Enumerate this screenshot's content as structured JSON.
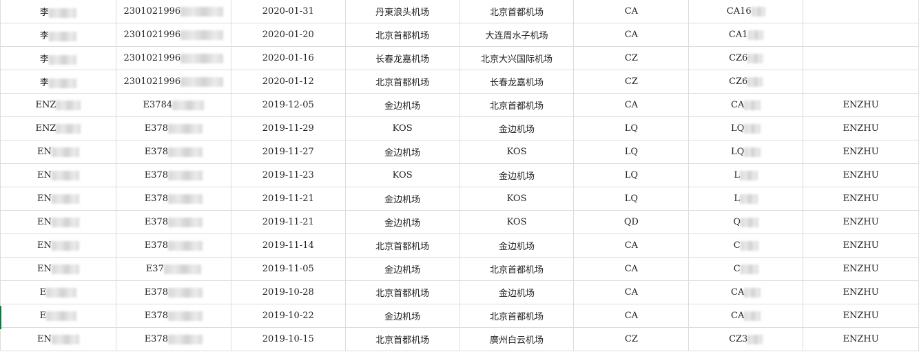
{
  "rows": [
    [
      "李",
      "2301021996",
      "2020-01-31",
      "丹東浪头机场",
      "北京首都机场",
      "CA",
      "CA16",
      ""
    ],
    [
      "李",
      "2301021996",
      "2020-01-20",
      "北京首都机场",
      "大连周水子机场",
      "CA",
      "CA1",
      ""
    ],
    [
      "李",
      "2301021996",
      "2020-01-16",
      "长春龙嘉机场",
      "北京大兴国际机场",
      "CZ",
      "CZ6",
      ""
    ],
    [
      "李",
      "2301021996",
      "2020-01-12",
      "北京首都机场",
      "长春龙嘉机场",
      "CZ",
      "CZ6",
      ""
    ],
    [
      "ENZ",
      "E3784",
      "2019-12-05",
      "金边机场",
      "北京首都机场",
      "CA",
      "CA",
      "ENZHU"
    ],
    [
      "ENZ",
      "E378",
      "2019-11-29",
      "KOS",
      "金边机场",
      "LQ",
      "LQ",
      "ENZHU"
    ],
    [
      "EN",
      "E378",
      "2019-11-27",
      "金边机场",
      "KOS",
      "LQ",
      "LQ",
      "ENZHU"
    ],
    [
      "EN",
      "E378",
      "2019-11-23",
      "KOS",
      "金边机场",
      "LQ",
      "L",
      "ENZHU"
    ],
    [
      "EN",
      "E378",
      "2019-11-21",
      "金边机场",
      "KOS",
      "LQ",
      "L",
      "ENZHU"
    ],
    [
      "EN",
      "E378",
      "2019-11-21",
      "金边机场",
      "KOS",
      "QD",
      "Q",
      "ENZHU"
    ],
    [
      "EN",
      "E378",
      "2019-11-14",
      "北京首都机场",
      "金边机场",
      "CA",
      "C",
      "ENZHU"
    ],
    [
      "EN",
      "E37",
      "2019-11-05",
      "金边机场",
      "北京首都机场",
      "CA",
      "C",
      "ENZHU"
    ],
    [
      "E",
      "E378",
      "2019-10-28",
      "北京首都机场",
      "金边机场",
      "CA",
      "CA",
      "ENZHU"
    ],
    [
      "E",
      "E378",
      "2019-10-22",
      "金边机场",
      "北京首都机场",
      "CA",
      "CA",
      "ENZHU"
    ],
    [
      "EN",
      "E378",
      "2019-10-15",
      "北京首都机场",
      "廣州白云机场",
      "CZ",
      "CZ3",
      "ENZHU"
    ]
  ],
  "redacted_columns": [
    0,
    1,
    6
  ],
  "colors": {
    "grid": "#dcdcdc",
    "selection": "#1e7145"
  }
}
